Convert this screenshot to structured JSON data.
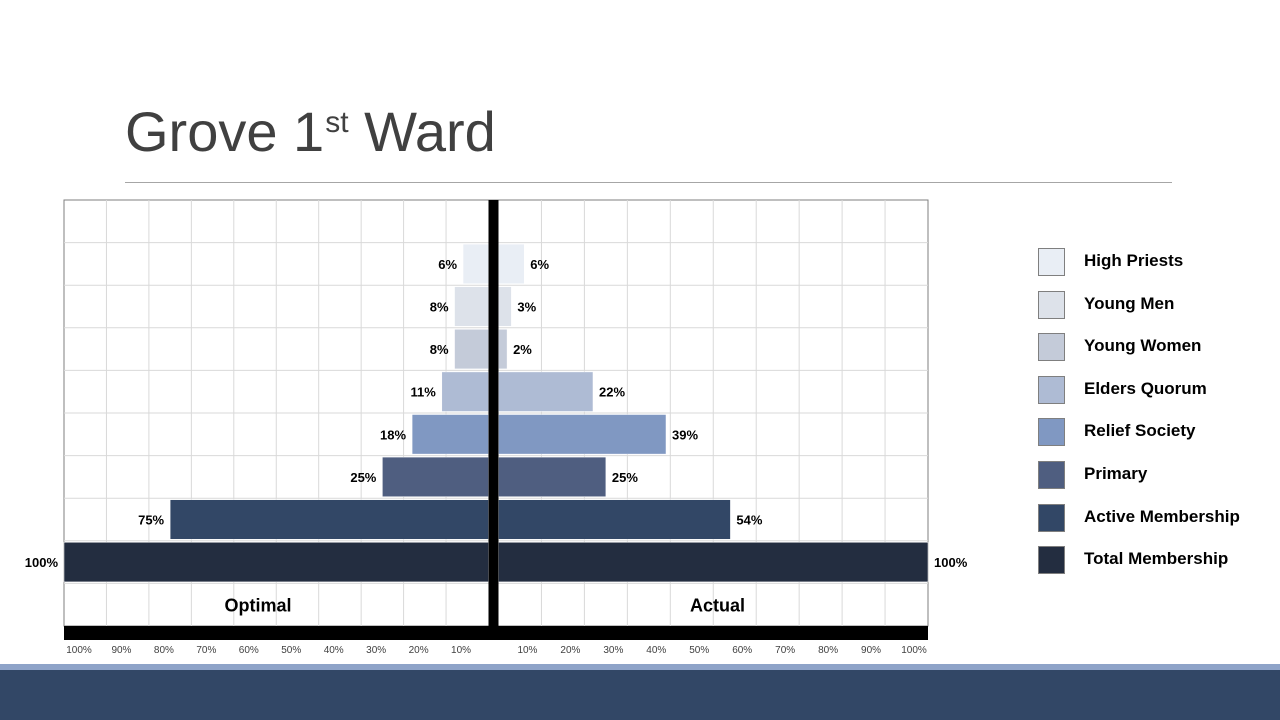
{
  "slide": {
    "title_main": "Grove 1",
    "title_sup": "st",
    "title_end": " Ward"
  },
  "chart_data": {
    "type": "bar",
    "orientation": "horizontal-pyramid",
    "categories": [
      "High Priests",
      "Young Men",
      "Young Women",
      "Elders Quorum",
      "Relief Society",
      "Primary",
      "Active Membership",
      "Total Membership"
    ],
    "series": [
      {
        "name": "Optimal",
        "values": [
          6,
          8,
          8,
          11,
          18,
          25,
          75,
          100
        ]
      },
      {
        "name": "Actual",
        "values": [
          6,
          3,
          2,
          22,
          39,
          25,
          54,
          100
        ]
      }
    ],
    "value_labels_left": [
      "6%",
      "8%",
      "8%",
      "11%",
      "18%",
      "25%",
      "75%",
      "100%"
    ],
    "value_labels_right": [
      "6%",
      "3%",
      "2%",
      "22%",
      "39%",
      "25%",
      "54%",
      "100%"
    ],
    "colors": [
      "#e9eef5",
      "#dde2ea",
      "#c4cbd9",
      "#aebbd4",
      "#8098c2",
      "#4f5e80",
      "#324766",
      "#232d40"
    ],
    "side_labels": {
      "left": "Optimal",
      "right": "Actual"
    },
    "xticks_left": [
      "100%",
      "90%",
      "80%",
      "70%",
      "60%",
      "50%",
      "40%",
      "30%",
      "20%",
      "10%"
    ],
    "xticks_right": [
      "10%",
      "20%",
      "30%",
      "40%",
      "50%",
      "60%",
      "70%",
      "80%",
      "90%",
      "100%"
    ],
    "xlim": [
      0,
      100
    ],
    "grid": true,
    "legend_position": "right"
  }
}
